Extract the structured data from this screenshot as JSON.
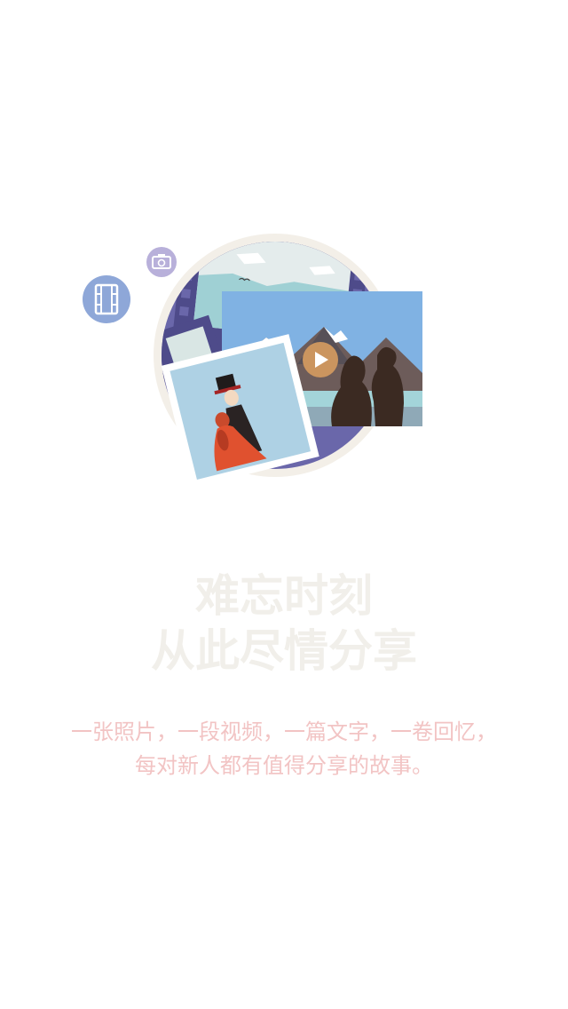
{
  "headline": {
    "line1": "难忘时刻",
    "line2": "从此尽情分享"
  },
  "caption": {
    "line1": "一张照片，一段视频，一篇文字，一卷回忆，",
    "line2": "每对新人都有值得分享的故事。"
  },
  "icons": {
    "film": "film-icon",
    "camera": "camera-icon",
    "play": "play-icon"
  },
  "colors": {
    "headline": "#f1efea",
    "caption": "#f2c4c4",
    "circle_ring": "#f3efe8",
    "circle_fill": "#6a67aa",
    "film_badge": "#8ea7d8",
    "camera_badge": "#b8b0da",
    "photo_sky": "#80b2e3",
    "play_button": "#cb955f"
  }
}
